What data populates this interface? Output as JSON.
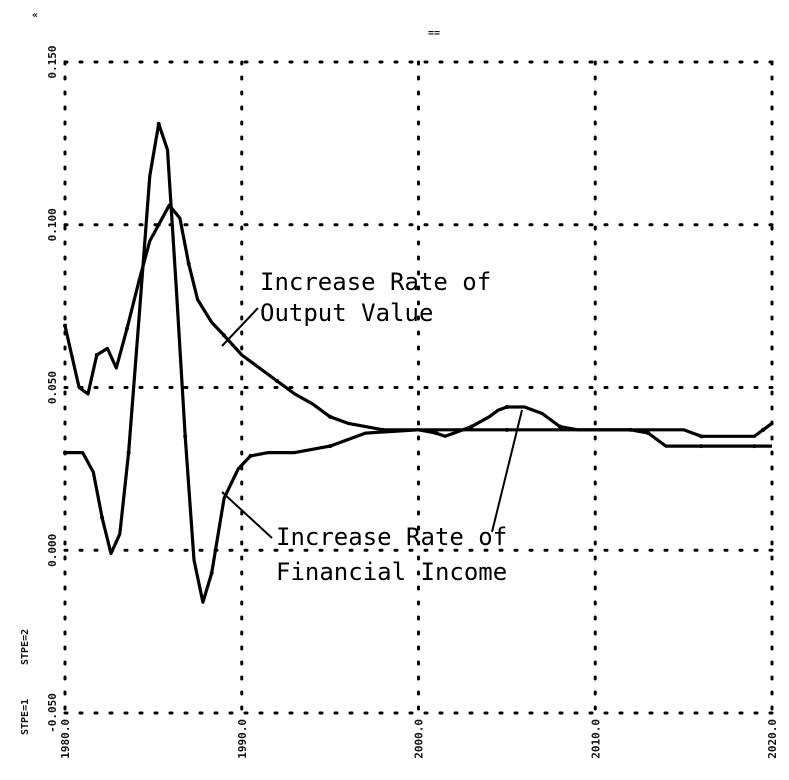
{
  "header": {
    "top_mark": "==",
    "corner_mark": "«"
  },
  "chart_data": {
    "type": "line",
    "title": "",
    "xlabel": "",
    "ylabel": "",
    "xlim": [
      1980,
      2020
    ],
    "ylim": [
      -0.05,
      0.15
    ],
    "grid": true,
    "x_tick_labels": [
      "1980.0",
      "1990.0",
      "2000.0",
      "2010.0",
      "2020.0"
    ],
    "y_tick_labels": [
      "-0.050",
      "0.000",
      "0.050",
      "0.100",
      "0.150"
    ],
    "left_labels": [
      "STPE=1",
      "STPE=2"
    ],
    "series": [
      {
        "name": "Increase Rate of Output Value",
        "x": [
          1980.0,
          1980.8,
          1981.3,
          1981.8,
          1982.4,
          1982.9,
          1983.5,
          1984.2,
          1984.8,
          1985.3,
          1985.9,
          1986.5,
          1987.0,
          1987.5,
          1988.3,
          1989.0,
          1990.0,
          1991.0,
          1992.0,
          1993.0,
          1994.0,
          1995.0,
          1996.0,
          1997.0,
          1998.0,
          1999.0,
          2000.0,
          2001.0,
          2001.5,
          2002.0,
          2003.0,
          2004.0,
          2004.5,
          2005.0,
          2006.0,
          2007.0,
          2008.0,
          2009.0,
          2010.0,
          2012.0,
          2014.0,
          2015.0,
          2016.0,
          2018.0,
          2019.0,
          2019.5,
          2020.0
        ],
        "y": [
          0.069,
          0.05,
          0.048,
          0.06,
          0.062,
          0.056,
          0.068,
          0.083,
          0.095,
          0.1,
          0.106,
          0.102,
          0.088,
          0.077,
          0.07,
          0.066,
          0.06,
          0.056,
          0.052,
          0.048,
          0.045,
          0.041,
          0.039,
          0.038,
          0.037,
          0.037,
          0.037,
          0.036,
          0.035,
          0.036,
          0.038,
          0.041,
          0.043,
          0.044,
          0.044,
          0.042,
          0.038,
          0.037,
          0.037,
          0.037,
          0.037,
          0.037,
          0.035,
          0.035,
          0.035,
          0.037,
          0.039
        ]
      },
      {
        "name": "Increase Rate of Financial Income",
        "x": [
          1980.0,
          1981.0,
          1981.6,
          1982.1,
          1982.6,
          1983.1,
          1983.6,
          1984.2,
          1984.8,
          1985.3,
          1985.8,
          1986.3,
          1986.8,
          1987.3,
          1987.8,
          1988.3,
          1989.0,
          1989.8,
          1990.5,
          1991.5,
          1993.0,
          1995.0,
          1997.0,
          2000.0,
          2005.0,
          2010.0,
          2012.0,
          2013.0,
          2014.0,
          2015.0,
          2016.0,
          2017.0,
          2018.0,
          2019.0,
          2020.0
        ],
        "y": [
          0.03,
          0.03,
          0.024,
          0.01,
          -0.001,
          0.005,
          0.03,
          0.072,
          0.115,
          0.131,
          0.123,
          0.08,
          0.035,
          -0.003,
          -0.016,
          -0.007,
          0.016,
          0.025,
          0.029,
          0.03,
          0.03,
          0.032,
          0.036,
          0.037,
          0.037,
          0.037,
          0.037,
          0.036,
          0.032,
          0.032,
          0.032,
          0.032,
          0.032,
          0.032,
          0.032
        ]
      }
    ],
    "annotations": [
      {
        "lines": [
          "Increase Rate of",
          "Output Value"
        ],
        "series": 0
      },
      {
        "lines": [
          "Increase Rate of",
          "Financial Income"
        ],
        "series": 1
      }
    ]
  }
}
